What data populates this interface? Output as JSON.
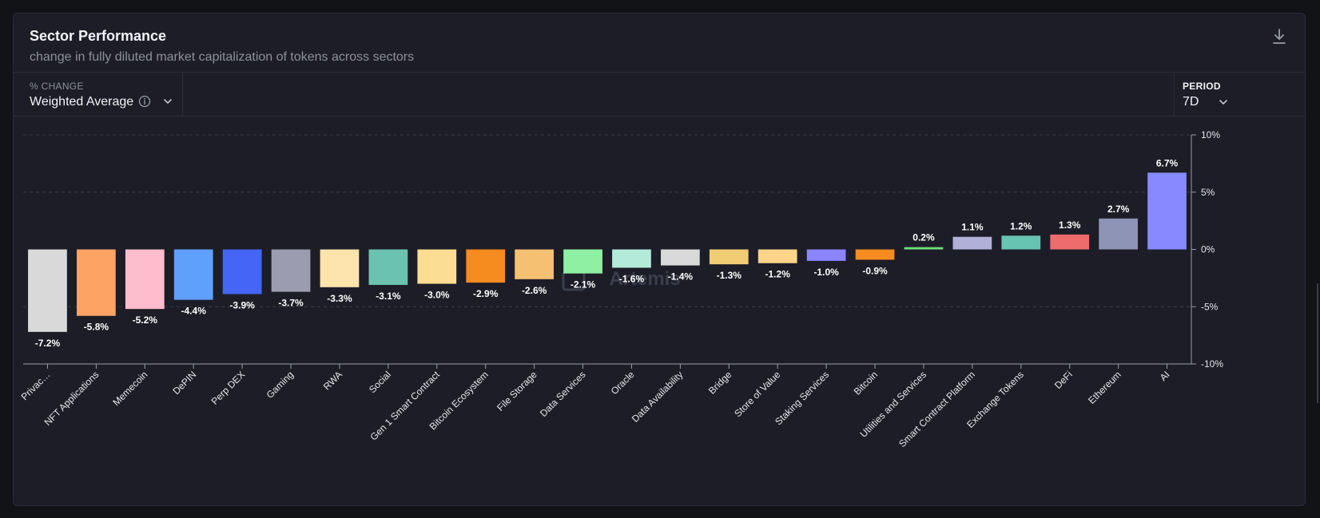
{
  "header": {
    "title": "Sector Performance",
    "subtitle": "change in fully diluted market capitalization of tokens across sectors"
  },
  "controls": {
    "pct_change_label": "% CHANGE",
    "pct_change_value": "Weighted Average",
    "period_label": "PERIOD",
    "period_value": "7D"
  },
  "icons": {
    "download": "download-icon",
    "info": "info-icon",
    "chevron": "chevron-down-icon"
  },
  "watermark": "Artemis",
  "chart_data": {
    "type": "bar",
    "title": "",
    "xlabel": "",
    "ylabel": "",
    "ylim": [
      -10,
      10
    ],
    "yticks": [
      10,
      5,
      0,
      -5,
      -10
    ],
    "ytick_labels": [
      "10%",
      "5%",
      "0%",
      "-5%",
      "-10%"
    ],
    "grid": true,
    "categories": [
      "Privac…",
      "NFT Applications",
      "Memecoin",
      "DePIN",
      "Perp DEX",
      "Gaming",
      "RWA",
      "Social",
      "Gen 1 Smart Contract",
      "Bitcoin Ecosystem",
      "File Storage",
      "Data Services",
      "Oracle",
      "Data Availability",
      "Bridge",
      "Store of Value",
      "Staking Services",
      "Bitcoin",
      "Utilities and Services",
      "Smart Contract Platform",
      "Exchange Tokens",
      "DeFi",
      "Ethereum",
      "AI"
    ],
    "values": [
      -7.2,
      -5.8,
      -5.2,
      -4.4,
      -3.9,
      -3.7,
      -3.3,
      -3.1,
      -3.0,
      -2.9,
      -2.6,
      -2.1,
      -1.6,
      -1.4,
      -1.3,
      -1.2,
      -1.0,
      -0.9,
      0.2,
      1.1,
      1.2,
      1.3,
      2.7,
      6.7
    ],
    "labels": [
      "-7.2%",
      "-5.8%",
      "-5.2%",
      "-4.4%",
      "-3.9%",
      "-3.7%",
      "-3.3%",
      "-3.1%",
      "-3.0%",
      "-2.9%",
      "-2.6%",
      "-2.1%",
      "-1.6%",
      "-1.4%",
      "-1.3%",
      "-1.2%",
      "-1.0%",
      "-0.9%",
      "0.2%",
      "1.1%",
      "1.2%",
      "1.3%",
      "2.7%",
      "6.7%"
    ],
    "colors": [
      "#d9d9d9",
      "#fda364",
      "#fdbdcc",
      "#5ea0fb",
      "#4565f7",
      "#9b9caf",
      "#fde3ac",
      "#6cc2b0",
      "#fddc93",
      "#f68b1f",
      "#f5c072",
      "#8ff0a4",
      "#b3ead9",
      "#d9d9d9",
      "#f0cc74",
      "#fcd48a",
      "#8c84ff",
      "#f68b1f",
      "#6de07a",
      "#b0b0d8",
      "#67c3b2",
      "#ef6c6c",
      "#8d94b5",
      "#8888ff"
    ]
  }
}
